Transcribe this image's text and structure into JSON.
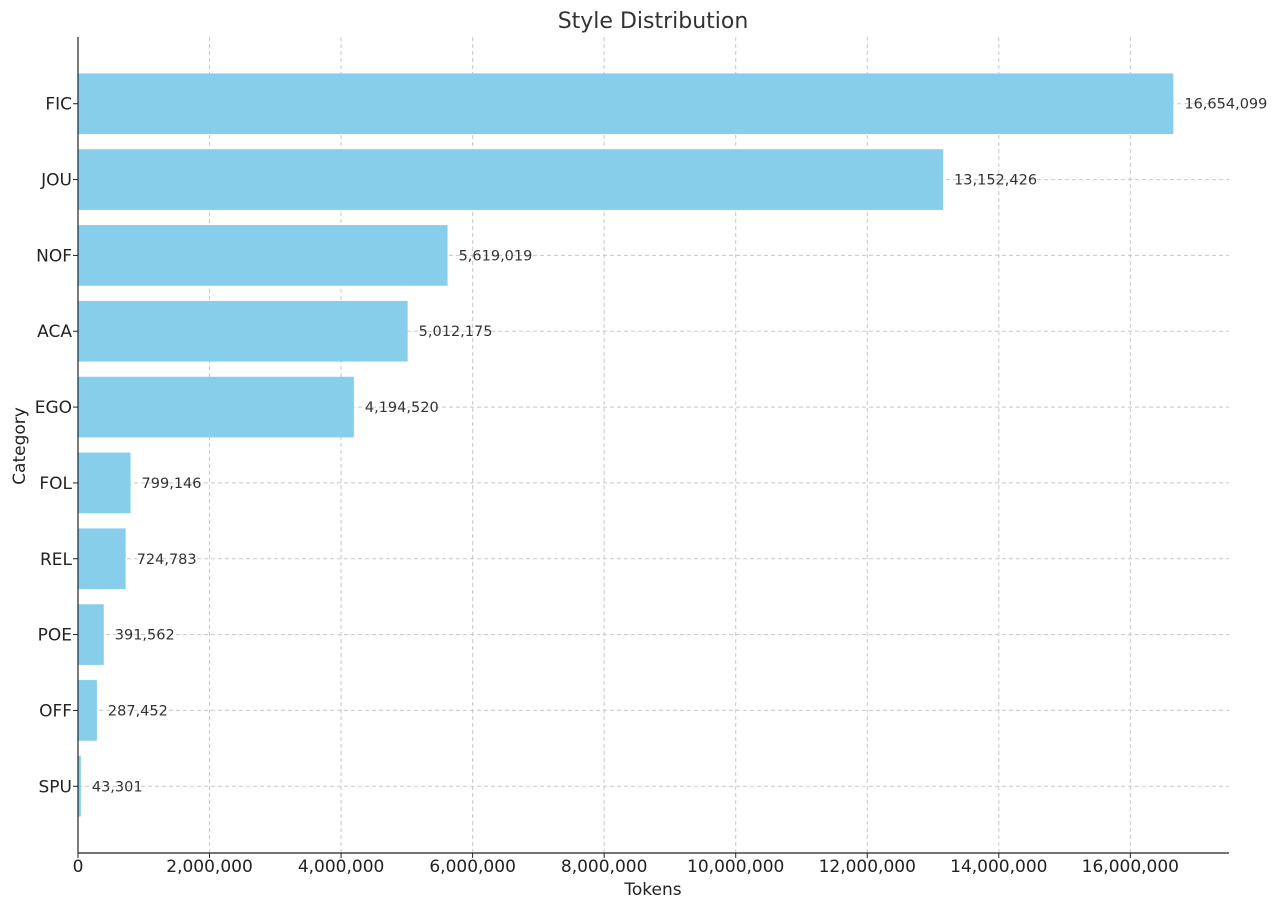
{
  "chart_data": {
    "type": "bar",
    "orientation": "horizontal",
    "title": "Style Distribution",
    "xlabel": "Tokens",
    "ylabel": "Category",
    "categories": [
      "FIC",
      "JOU",
      "NOF",
      "ACA",
      "EGO",
      "FOL",
      "REL",
      "POE",
      "OFF",
      "SPU"
    ],
    "values": [
      16654099,
      13152426,
      5619019,
      5012175,
      4194520,
      799146,
      724783,
      391562,
      287452,
      43301
    ],
    "value_labels": [
      "16,654,099",
      "13,152,426",
      "5,619,019",
      "5,012,175",
      "4,194,520",
      "799,146",
      "724,783",
      "391,562",
      "287,452",
      "43,301"
    ],
    "xlim": [
      0,
      17500000
    ],
    "xticks": [
      0,
      2000000,
      4000000,
      6000000,
      8000000,
      10000000,
      12000000,
      14000000,
      16000000
    ],
    "xtick_labels": [
      "0",
      "2,000,000",
      "4,000,000",
      "6,000,000",
      "8,000,000",
      "10,000,000",
      "12,000,000",
      "14,000,000",
      "16,000,000"
    ],
    "grid": true,
    "bar_color": "#87ceeb"
  }
}
